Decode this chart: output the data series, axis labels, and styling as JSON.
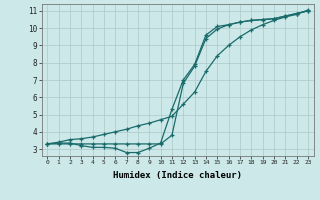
{
  "title": "",
  "xlabel": "Humidex (Indice chaleur)",
  "background_color": "#cce8e8",
  "grid_color": "#adc8c8",
  "line_color": "#1a6b6b",
  "xlim": [
    -0.5,
    23.5
  ],
  "ylim": [
    2.6,
    11.4
  ],
  "xticks": [
    0,
    1,
    2,
    3,
    4,
    5,
    6,
    7,
    8,
    9,
    10,
    11,
    12,
    13,
    14,
    15,
    16,
    17,
    18,
    19,
    20,
    21,
    22,
    23
  ],
  "yticks": [
    3,
    4,
    5,
    6,
    7,
    8,
    9,
    10,
    11
  ],
  "curve1_x": [
    0,
    1,
    2,
    3,
    4,
    5,
    6,
    7,
    8,
    9,
    10,
    11,
    12,
    13,
    14,
    15,
    16,
    17,
    18,
    19,
    20,
    21,
    22,
    23
  ],
  "curve1_y": [
    3.3,
    3.35,
    3.35,
    3.2,
    3.1,
    3.1,
    3.05,
    2.8,
    2.8,
    3.05,
    3.35,
    5.3,
    7.0,
    7.9,
    9.6,
    10.1,
    10.2,
    10.35,
    10.45,
    10.5,
    10.55,
    10.7,
    10.85,
    11.0
  ],
  "curve2_x": [
    0,
    1,
    2,
    3,
    4,
    5,
    6,
    7,
    8,
    9,
    10,
    11,
    12,
    13,
    14,
    15,
    16,
    17,
    18,
    19,
    20,
    21,
    22,
    23
  ],
  "curve2_y": [
    3.3,
    3.3,
    3.3,
    3.3,
    3.3,
    3.3,
    3.3,
    3.3,
    3.3,
    3.3,
    3.3,
    3.8,
    6.8,
    7.8,
    9.4,
    9.95,
    10.2,
    10.35,
    10.45,
    10.5,
    10.55,
    10.7,
    10.85,
    11.0
  ],
  "curve3_x": [
    0,
    1,
    2,
    3,
    4,
    5,
    6,
    7,
    8,
    9,
    10,
    11,
    12,
    13,
    14,
    15,
    16,
    17,
    18,
    19,
    20,
    21,
    22,
    23
  ],
  "curve3_y": [
    3.3,
    3.4,
    3.55,
    3.6,
    3.7,
    3.85,
    4.0,
    4.15,
    4.35,
    4.5,
    4.7,
    4.9,
    5.6,
    6.3,
    7.5,
    8.4,
    9.0,
    9.5,
    9.9,
    10.2,
    10.45,
    10.65,
    10.8,
    11.05
  ]
}
